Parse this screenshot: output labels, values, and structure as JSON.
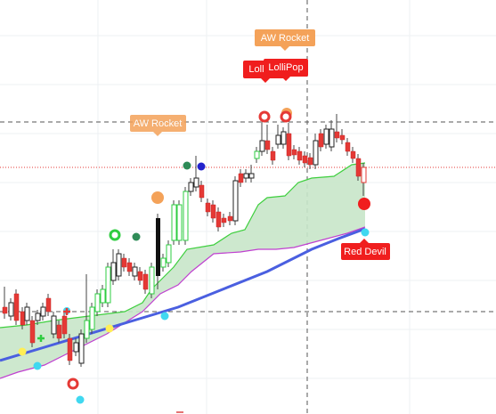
{
  "labels": {
    "aw_rocket_top": "AW Rocket",
    "aw_rocket_left": "AW Rocket",
    "lollipop_back": "LolliPop",
    "lollipop_front": "LolliPop",
    "red_devil": "Red Devil"
  }
}
